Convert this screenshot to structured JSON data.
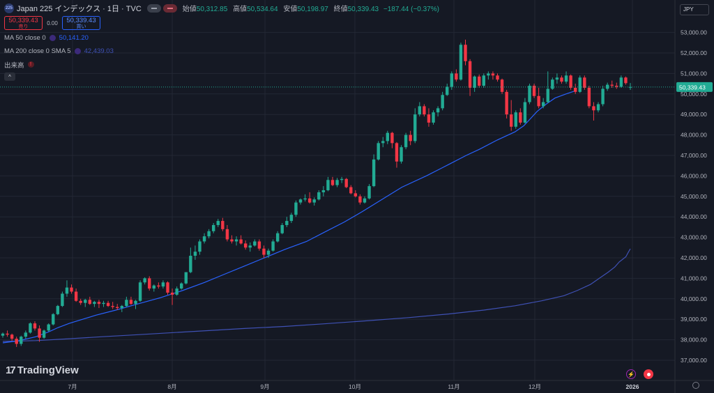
{
  "header": {
    "symbol_badge": "225",
    "title": "Japan 225 インデックス · 1日 · TVC",
    "open_label": "始値",
    "open_value": "50,312.85",
    "high_label": "高値",
    "high_value": "50,534.64",
    "low_label": "安値",
    "low_value": "50,198.97",
    "close_label": "終値",
    "close_value": "50,339.43",
    "change": "−187.44 (−0.37%)"
  },
  "trade": {
    "sell_price": "50,339.43",
    "sell_label": "売り",
    "spread": "0.00",
    "buy_price": "50,339.43",
    "buy_label": "買い"
  },
  "indicators": [
    {
      "name": "MA 50 close 0",
      "value": "50,141.20",
      "color": "#2962ff"
    },
    {
      "name": "MA 200 close 0 SMA 5",
      "value": "42,439.03",
      "color": "#3f51b5"
    },
    {
      "name": "出来高"
    }
  ],
  "currency": "JPY",
  "logo_text": "TradingView",
  "colors": {
    "up": "#22ab94",
    "down": "#f23645",
    "background": "#151924",
    "grid": "#232834",
    "last_price": "#22ab94"
  },
  "icons": [
    "collapse-chevron-icon",
    "lightning-icon",
    "record-icon",
    "settings-gear-icon"
  ],
  "chart_data": {
    "type": "candlestick",
    "x_ticks": [
      "7月",
      "8月",
      "9月",
      "10月",
      "11月",
      "12月",
      "2026"
    ],
    "y_ticks": [
      "37,000.00",
      "38,000.00",
      "39,000.00",
      "40,000.00",
      "41,000.00",
      "42,000.00",
      "43,000.00",
      "44,000.00",
      "45,000.00",
      "46,000.00",
      "47,000.00",
      "48,000.00",
      "49,000.00",
      "50,000.00",
      "51,000.00",
      "52,000.00",
      "53,000.00"
    ],
    "ylim": [
      36300,
      53300
    ],
    "last_price": 50339.43,
    "last_price_label": "50,339.43",
    "ohlc": [
      [
        38200,
        38350,
        38100,
        38300
      ],
      [
        38300,
        38450,
        38150,
        38250
      ],
      [
        38250,
        38300,
        37950,
        38050
      ],
      [
        38050,
        38150,
        37650,
        37800
      ],
      [
        37800,
        38200,
        37700,
        38150
      ],
      [
        38150,
        38450,
        38050,
        38350
      ],
      [
        38350,
        38850,
        38300,
        38800
      ],
      [
        38800,
        38900,
        38450,
        38550
      ],
      [
        38550,
        38700,
        37900,
        38100
      ],
      [
        38100,
        38500,
        38050,
        38450
      ],
      [
        38450,
        38800,
        38400,
        38750
      ],
      [
        38750,
        39300,
        38700,
        39250
      ],
      [
        39250,
        39700,
        39200,
        39650
      ],
      [
        39650,
        40350,
        39600,
        40250
      ],
      [
        40250,
        40900,
        40100,
        40550
      ],
      [
        40550,
        40700,
        40250,
        40350
      ],
      [
        40350,
        40500,
        39850,
        39900
      ],
      [
        39900,
        40000,
        39700,
        39800
      ],
      [
        39800,
        40000,
        39600,
        39950
      ],
      [
        39950,
        40100,
        39700,
        39750
      ],
      [
        39750,
        39900,
        39600,
        39850
      ],
      [
        39850,
        39950,
        39550,
        39750
      ],
      [
        39750,
        39900,
        39600,
        39800
      ],
      [
        39800,
        39900,
        39600,
        39650
      ],
      [
        39650,
        39850,
        39500,
        39600
      ],
      [
        39600,
        39750,
        39450,
        39550
      ],
      [
        39550,
        39700,
        39350,
        39650
      ],
      [
        39650,
        40100,
        39600,
        39950
      ],
      [
        39950,
        40100,
        39700,
        39750
      ],
      [
        39750,
        39950,
        39500,
        39900
      ],
      [
        39900,
        40900,
        39850,
        40800
      ],
      [
        40800,
        41050,
        40700,
        41000
      ],
      [
        41000,
        41100,
        40400,
        40500
      ],
      [
        40500,
        40700,
        40350,
        40650
      ],
      [
        40650,
        40800,
        40500,
        40600
      ],
      [
        40600,
        40900,
        40500,
        40800
      ],
      [
        40800,
        40850,
        40200,
        40300
      ],
      [
        40300,
        40500,
        39700,
        40200
      ],
      [
        40200,
        40600,
        40150,
        40500
      ],
      [
        40500,
        40800,
        40450,
        40750
      ],
      [
        40750,
        41300,
        40700,
        41300
      ],
      [
        41300,
        42500,
        41250,
        42100
      ],
      [
        42100,
        42600,
        41900,
        42300
      ],
      [
        42300,
        42900,
        42150,
        42800
      ],
      [
        42800,
        43200,
        42700,
        43050
      ],
      [
        43050,
        43400,
        42950,
        43300
      ],
      [
        43300,
        43700,
        43200,
        43600
      ],
      [
        43600,
        43900,
        43500,
        43800
      ],
      [
        43800,
        43950,
        43300,
        43400
      ],
      [
        43400,
        43600,
        42800,
        42900
      ],
      [
        42900,
        43100,
        42700,
        42800
      ],
      [
        42800,
        43050,
        42600,
        42900
      ],
      [
        42900,
        43100,
        42650,
        42700
      ],
      [
        42700,
        42850,
        42400,
        42500
      ],
      [
        42500,
        42750,
        42300,
        42600
      ],
      [
        42600,
        42900,
        42550,
        42800
      ],
      [
        42800,
        42900,
        42350,
        42450
      ],
      [
        42450,
        42600,
        42000,
        42150
      ],
      [
        42150,
        42450,
        42000,
        42350
      ],
      [
        42350,
        42900,
        42300,
        42800
      ],
      [
        42800,
        43300,
        42750,
        43200
      ],
      [
        43200,
        43700,
        43150,
        43600
      ],
      [
        43600,
        44000,
        43500,
        43800
      ],
      [
        43800,
        44200,
        43700,
        44100
      ],
      [
        44100,
        44800,
        44000,
        44700
      ],
      [
        44700,
        44900,
        44600,
        44850
      ],
      [
        44850,
        45100,
        44750,
        44900
      ],
      [
        44900,
        45200,
        44650,
        44700
      ],
      [
        44700,
        44950,
        44550,
        44850
      ],
      [
        44850,
        45300,
        44800,
        45200
      ],
      [
        45200,
        45500,
        45000,
        45300
      ],
      [
        45300,
        45950,
        45250,
        45800
      ],
      [
        45800,
        45950,
        45500,
        45550
      ],
      [
        45550,
        45900,
        45450,
        45800
      ],
      [
        45800,
        45950,
        45650,
        45850
      ],
      [
        45850,
        45900,
        45400,
        45450
      ],
      [
        45450,
        45550,
        45100,
        45150
      ],
      [
        45150,
        45300,
        44950,
        45000
      ],
      [
        45000,
        45100,
        44600,
        44700
      ],
      [
        44700,
        45000,
        44650,
        44900
      ],
      [
        44900,
        45600,
        44850,
        45500
      ],
      [
        45500,
        47050,
        45450,
        46800
      ],
      [
        46800,
        47700,
        46750,
        47600
      ],
      [
        47600,
        47900,
        47400,
        47700
      ],
      [
        47700,
        48200,
        47550,
        48100
      ],
      [
        48100,
        48150,
        47350,
        47600
      ],
      [
        47600,
        47650,
        46400,
        46700
      ],
      [
        46700,
        47500,
        46600,
        47400
      ],
      [
        47400,
        48100,
        47300,
        48000
      ],
      [
        48000,
        48200,
        47500,
        47700
      ],
      [
        47700,
        49300,
        47600,
        49000
      ],
      [
        49000,
        49600,
        48900,
        49400
      ],
      [
        49400,
        49500,
        48900,
        49000
      ],
      [
        49000,
        49300,
        48400,
        48600
      ],
      [
        48600,
        49200,
        48500,
        49100
      ],
      [
        49100,
        49400,
        48900,
        49300
      ],
      [
        49300,
        50100,
        49200,
        49950
      ],
      [
        49950,
        50500,
        49900,
        50350
      ],
      [
        50350,
        51100,
        50200,
        51000
      ],
      [
        51000,
        51200,
        50600,
        50700
      ],
      [
        50700,
        52500,
        50650,
        52400
      ],
      [
        52400,
        52650,
        51400,
        51600
      ],
      [
        51600,
        51700,
        49900,
        50300
      ],
      [
        50300,
        50900,
        50100,
        50850
      ],
      [
        50850,
        50950,
        50300,
        50400
      ],
      [
        50400,
        51000,
        50300,
        50900
      ],
      [
        50900,
        51100,
        50700,
        51000
      ],
      [
        51000,
        51100,
        50700,
        50900
      ],
      [
        50900,
        51000,
        50600,
        50700
      ],
      [
        50700,
        50750,
        50000,
        50100
      ],
      [
        50100,
        50200,
        48800,
        49000
      ],
      [
        49000,
        49700,
        48200,
        48400
      ],
      [
        48400,
        49200,
        48300,
        49100
      ],
      [
        49100,
        49300,
        48500,
        48600
      ],
      [
        48600,
        49800,
        48550,
        49600
      ],
      [
        49600,
        50500,
        49500,
        50400
      ],
      [
        50400,
        50500,
        49800,
        49900
      ],
      [
        49900,
        50300,
        49300,
        49400
      ],
      [
        49400,
        49800,
        49300,
        49600
      ],
      [
        49600,
        51100,
        49550,
        50250
      ],
      [
        50250,
        50800,
        50200,
        50700
      ],
      [
        50700,
        51000,
        50500,
        50800
      ],
      [
        50800,
        50900,
        50500,
        50600
      ],
      [
        50600,
        51100,
        50500,
        50900
      ],
      [
        50900,
        50950,
        50200,
        50300
      ],
      [
        50300,
        50500,
        50000,
        50100
      ],
      [
        50100,
        50900,
        50050,
        50800
      ],
      [
        50800,
        50900,
        50200,
        50300
      ],
      [
        50300,
        50400,
        49300,
        49400
      ],
      [
        49400,
        49600,
        48700,
        49200
      ],
      [
        49200,
        49600,
        49100,
        49500
      ],
      [
        49500,
        50400,
        49400,
        50250
      ],
      [
        50250,
        50550,
        50150,
        50450
      ],
      [
        50450,
        50650,
        50300,
        50400
      ],
      [
        50400,
        50550,
        50250,
        50350
      ],
      [
        50350,
        50900,
        50300,
        50800
      ],
      [
        50800,
        50850,
        50450,
        50527
      ],
      [
        50312.85,
        50534.64,
        50198.97,
        50339.43
      ]
    ],
    "ma50": [
      [
        38250,
        37850
      ],
      [
        38600,
        37950
      ],
      [
        39000,
        38150
      ],
      [
        39300,
        38400
      ],
      [
        39500,
        38600
      ],
      [
        39750,
        38800
      ],
      [
        40050,
        39000
      ],
      [
        40350,
        39200
      ],
      [
        40800,
        39450
      ],
      [
        41300,
        39750
      ],
      [
        41800,
        40050
      ],
      [
        42300,
        40400
      ],
      [
        42800,
        40800
      ],
      [
        43250,
        41200
      ],
      [
        43700,
        41600
      ],
      [
        44150,
        42000
      ],
      [
        44600,
        42400
      ],
      [
        45100,
        42800
      ],
      [
        45500,
        43250
      ],
      [
        45950,
        43750
      ],
      [
        46350,
        44250
      ],
      [
        46800,
        44850
      ],
      [
        47250,
        45450
      ],
      [
        47800,
        46000
      ],
      [
        48300,
        46550
      ],
      [
        48700,
        47000
      ],
      [
        49000,
        47300
      ],
      [
        49400,
        47750
      ],
      [
        49800,
        48150
      ],
      [
        50000,
        48450
      ],
      [
        50150,
        48800
      ],
      [
        50300,
        49150
      ],
      [
        50500,
        49500
      ],
      [
        50700,
        49800
      ],
      [
        50950,
        50000
      ],
      [
        51150,
        50141.2
      ]
    ],
    "ma200": [
      [
        38250,
        37920
      ],
      [
        39000,
        37960
      ],
      [
        39750,
        38050
      ],
      [
        40500,
        38150
      ],
      [
        41300,
        38250
      ],
      [
        42100,
        38350
      ],
      [
        42900,
        38450
      ],
      [
        43700,
        38550
      ],
      [
        44600,
        38650
      ],
      [
        45500,
        38780
      ],
      [
        46400,
        38920
      ],
      [
        47400,
        39080
      ],
      [
        48300,
        39260
      ],
      [
        49100,
        39450
      ],
      [
        49800,
        39660
      ],
      [
        50400,
        39900
      ],
      [
        50900,
        40150
      ],
      [
        51200,
        40400
      ],
      [
        51500,
        40700
      ],
      [
        51700,
        41000
      ],
      [
        51900,
        41300
      ],
      [
        52050,
        41550
      ],
      [
        52150,
        41800
      ],
      [
        52300,
        42050
      ],
      [
        52350,
        42250
      ],
      [
        52400,
        42439.03
      ]
    ]
  }
}
